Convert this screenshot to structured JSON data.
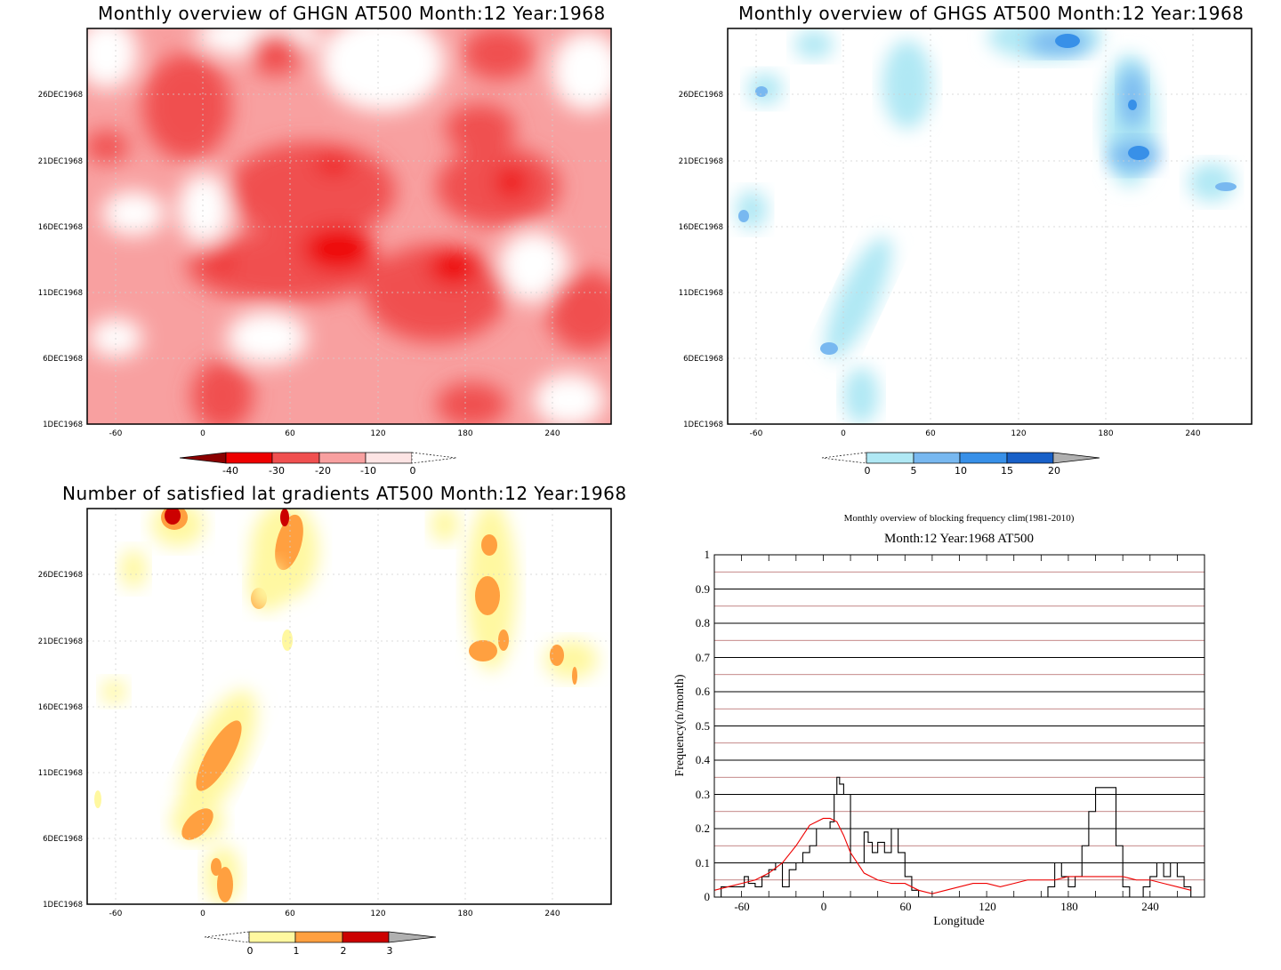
{
  "colors": {
    "red_bins": [
      "#8b0000",
      "#ee0000",
      "#f05050",
      "#f8a0a0",
      "#fde4e4"
    ],
    "blue_bins": [
      "#b0e8f4",
      "#78b8f0",
      "#3890e8",
      "#1860c8",
      "#b0b0b0"
    ],
    "yellow_bins": [
      "#fff8a0",
      "#ffa040",
      "#cc0000",
      "#b0b0b0"
    ],
    "line_black": "#000000",
    "line_red": "#ee0000",
    "grid_red": "#b06060"
  },
  "charts": {
    "ghgn": {
      "title": "Monthly overview of GHGN AT500 Month:12 Year:1968",
      "x_ticks": [
        "-60",
        "0",
        "60",
        "120",
        "180",
        "240"
      ],
      "y_ticks": [
        "1DEC1968",
        "6DEC1968",
        "11DEC1968",
        "16DEC1968",
        "21DEC1968",
        "26DEC1968"
      ],
      "colorbar": [
        "-40",
        "-30",
        "-20",
        "-10",
        "0"
      ]
    },
    "ghgs": {
      "title": "Monthly overview of GHGS AT500 Month:12 Year:1968",
      "x_ticks": [
        "-60",
        "0",
        "60",
        "120",
        "180",
        "240"
      ],
      "y_ticks": [
        "1DEC1968",
        "6DEC1968",
        "11DEC1968",
        "16DEC1968",
        "21DEC1968",
        "26DEC1968"
      ],
      "colorbar": [
        "0",
        "5",
        "10",
        "15",
        "20"
      ]
    },
    "lat": {
      "title": "Number of satisfied lat gradients AT500 Month:12 Year:1968",
      "x_ticks": [
        "-60",
        "0",
        "60",
        "120",
        "180",
        "240"
      ],
      "y_ticks": [
        "1DEC1968",
        "6DEC1968",
        "11DEC1968",
        "16DEC1968",
        "21DEC1968",
        "26DEC1968"
      ],
      "colorbar": [
        "0",
        "1",
        "2",
        "3"
      ]
    },
    "freq": {
      "title": "Monthly overview of blocking frequency clim(1981-2010)",
      "subtitle": "Month:12 Year:1968  AT500",
      "xlabel": "Longitude",
      "ylabel": "Frequency(n/month)",
      "x_ticks": [
        "-60",
        "0",
        "60",
        "120",
        "180",
        "240"
      ],
      "y_ticks": [
        "0",
        "0.1",
        "0.2",
        "0.3",
        "0.4",
        "0.5",
        "0.6",
        "0.7",
        "0.8",
        "0.9",
        "1"
      ]
    }
  },
  "chart_data": [
    {
      "type": "heatmap",
      "title": "Monthly overview of GHGN AT500 Month:12 Year:1968",
      "x_range": [
        -80,
        280
      ],
      "y_range": [
        "1DEC1968",
        "31DEC1968"
      ],
      "levels": [
        -40,
        -30,
        -20,
        -10,
        0
      ],
      "features": [
        {
          "lon": -15,
          "day": 24,
          "value": -45
        },
        {
          "lon": 90,
          "day": 20,
          "value": -45
        },
        {
          "lon": 100,
          "day": 14,
          "value": -45
        },
        {
          "lon": 175,
          "day": 13,
          "value": -45
        },
        {
          "lon": 210,
          "day": 18,
          "value": -45
        },
        {
          "lon": 60,
          "day": 10,
          "value": -35
        },
        {
          "lon": 140,
          "day": 3,
          "value": -30
        },
        {
          "lon": 0,
          "day": 2,
          "value": -30
        },
        {
          "lon": 160,
          "day": 27,
          "value": -30
        },
        {
          "lon": -40,
          "day": 28,
          "value": -25
        }
      ]
    },
    {
      "type": "heatmap",
      "title": "Monthly overview of GHGS AT500 Month:12 Year:1968",
      "x_range": [
        -80,
        280
      ],
      "y_range": [
        "1DEC1968",
        "31DEC1968"
      ],
      "levels": [
        0,
        5,
        10,
        15,
        20
      ],
      "features": [
        {
          "lon": 155,
          "day": 30,
          "value": 15
        },
        {
          "lon": 195,
          "day": 25,
          "value": 12
        },
        {
          "lon": 205,
          "day": 20,
          "value": 15
        },
        {
          "lon": 255,
          "day": 19,
          "value": 8
        },
        {
          "lon": -70,
          "day": 16,
          "value": 8
        },
        {
          "lon": -55,
          "day": 27,
          "value": 6
        },
        {
          "lon": -10,
          "day": 6,
          "value": 8
        },
        {
          "lon": 20,
          "day": 2,
          "value": 3
        },
        {
          "lon": 30,
          "day": 13,
          "value": 3
        },
        {
          "lon": 60,
          "day": 26,
          "value": 3
        }
      ]
    },
    {
      "type": "heatmap",
      "title": "Number of satisfied lat gradients AT500 Month:12 Year:1968",
      "x_range": [
        -80,
        280
      ],
      "y_range": [
        "1DEC1968",
        "31DEC1968"
      ],
      "levels": [
        0,
        1,
        2,
        3
      ],
      "features": [
        {
          "lon": -20,
          "day": 30,
          "value": 3
        },
        {
          "lon": 55,
          "day": 30,
          "value": 3
        },
        {
          "lon": 10,
          "day": 11,
          "value": 2
        },
        {
          "lon": -15,
          "day": 7,
          "value": 2
        },
        {
          "lon": 20,
          "day": 2,
          "value": 2
        },
        {
          "lon": 195,
          "day": 24,
          "value": 2
        },
        {
          "lon": 195,
          "day": 21,
          "value": 2
        },
        {
          "lon": 245,
          "day": 20,
          "value": 2
        },
        {
          "lon": -70,
          "day": 17,
          "value": 0.5
        },
        {
          "lon": -50,
          "day": 26,
          "value": 0.5
        }
      ]
    },
    {
      "type": "line",
      "title": "Monthly overview of blocking frequency clim(1981-2010)",
      "subtitle": "Month:12 Year:1968  AT500",
      "xlabel": "Longitude",
      "ylabel": "Frequency(n/month)",
      "xlim": [
        -80,
        280
      ],
      "ylim": [
        0,
        1
      ],
      "series": [
        {
          "color": "#000000",
          "x": [
            -80,
            -75,
            -65,
            -58,
            -55,
            -50,
            -45,
            -40,
            -35,
            -30,
            -25,
            -20,
            -15,
            -10,
            -5,
            0,
            5,
            8,
            10,
            12,
            15,
            20,
            25,
            30,
            33,
            36,
            40,
            45,
            50,
            55,
            60,
            65,
            70,
            75,
            80,
            85,
            90,
            100,
            110,
            120,
            130,
            140,
            150,
            160,
            165,
            170,
            175,
            180,
            185,
            190,
            195,
            200,
            205,
            210,
            215,
            220,
            225,
            230,
            235,
            240,
            245,
            250,
            255,
            260,
            265,
            270
          ],
          "y": [
            0.0,
            0.03,
            0.03,
            0.06,
            0.04,
            0.03,
            0.06,
            0.08,
            0.1,
            0.03,
            0.08,
            0.1,
            0.13,
            0.15,
            0.2,
            0.2,
            0.22,
            0.3,
            0.35,
            0.33,
            0.3,
            0.1,
            0.1,
            0.19,
            0.16,
            0.13,
            0.16,
            0.13,
            0.2,
            0.13,
            0.06,
            0.02,
            0.0,
            0.0,
            0.0,
            0.0,
            0.0,
            0.0,
            0.0,
            0.0,
            0.0,
            0.0,
            0.0,
            0.0,
            0.03,
            0.1,
            0.06,
            0.03,
            0.06,
            0.15,
            0.25,
            0.32,
            0.32,
            0.32,
            0.15,
            0.03,
            0.0,
            0.0,
            0.03,
            0.06,
            0.1,
            0.06,
            0.1,
            0.06,
            0.03,
            0.0
          ]
        },
        {
          "color": "#ee0000",
          "x": [
            -80,
            -70,
            -60,
            -50,
            -40,
            -30,
            -20,
            -10,
            0,
            5,
            10,
            15,
            20,
            30,
            40,
            50,
            60,
            70,
            80,
            90,
            100,
            110,
            120,
            130,
            140,
            150,
            160,
            170,
            180,
            190,
            200,
            210,
            220,
            230,
            240,
            250,
            260,
            270
          ],
          "y": [
            0.02,
            0.03,
            0.04,
            0.05,
            0.07,
            0.1,
            0.15,
            0.21,
            0.23,
            0.23,
            0.22,
            0.18,
            0.13,
            0.07,
            0.05,
            0.04,
            0.04,
            0.02,
            0.01,
            0.02,
            0.03,
            0.04,
            0.04,
            0.03,
            0.04,
            0.05,
            0.05,
            0.05,
            0.06,
            0.06,
            0.06,
            0.06,
            0.06,
            0.05,
            0.05,
            0.04,
            0.03,
            0.02
          ]
        }
      ]
    }
  ]
}
